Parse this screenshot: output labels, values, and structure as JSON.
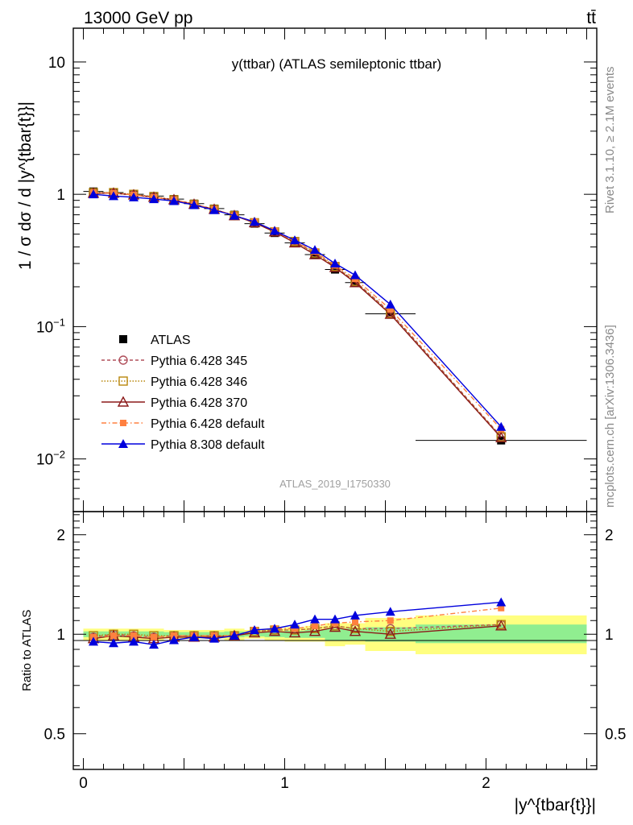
{
  "header": {
    "left": "13000 GeV pp",
    "right": "tt̄"
  },
  "side_labels": {
    "rivet": "Rivet 3.1.10, ≥ 2.1M events",
    "mcplots": "mcplots.cern.ch [arXiv:1306.3436]"
  },
  "colors": {
    "ATLAS": "#000000",
    "Pythia 6.428 345": "#b0505c",
    "Pythia 6.428 346": "#b8860b",
    "Pythia 6.428 370": "#8b1a1a",
    "Pythia 6.428 default": "#ff8040",
    "Pythia 8.308 default": "#0000dd",
    "band_inner": "#90ee90",
    "band_outer": "#ffff80"
  },
  "chart_data": [
    {
      "type": "line",
      "panel": "main",
      "title": "y(ttbar) (ATLAS semileptonic ttbar)",
      "ylabel": "1 / σ dσ / d |y^{tbar{t}}|",
      "analysis_label": "ATLAS_2019_I1750330",
      "yscale": "log",
      "xlim": [
        -0.05,
        2.55
      ],
      "ylim": [
        0.004,
        18
      ],
      "ytick_labels": [
        {
          "value": 10,
          "label": "10"
        },
        {
          "value": 1,
          "label": "1"
        },
        {
          "value": 0.1,
          "label": "10^-1"
        },
        {
          "value": 0.01,
          "label": "10^-2"
        }
      ],
      "legend_position": "lower-left",
      "bin_edges": [
        0.0,
        0.1,
        0.2,
        0.3,
        0.4,
        0.5,
        0.6,
        0.7,
        0.8,
        0.9,
        1.0,
        1.1,
        1.2,
        1.3,
        1.4,
        1.65,
        2.5
      ],
      "x": [
        0.05,
        0.15,
        0.25,
        0.35,
        0.45,
        0.55,
        0.65,
        0.75,
        0.85,
        0.95,
        1.05,
        1.15,
        1.25,
        1.35,
        1.525,
        2.075
      ],
      "series": [
        {
          "name": "ATLAS",
          "marker": "square",
          "dash": "",
          "values": [
            1.05,
            1.03,
            1.0,
            0.97,
            0.92,
            0.85,
            0.78,
            0.7,
            0.6,
            0.51,
            0.43,
            0.35,
            0.27,
            0.215,
            0.125,
            0.0138
          ]
        },
        {
          "name": "Pythia 6.428 345",
          "marker": "circle-open",
          "dash": "4,3",
          "values": [
            1.02,
            1.02,
            0.99,
            0.95,
            0.91,
            0.84,
            0.77,
            0.69,
            0.61,
            0.52,
            0.44,
            0.36,
            0.285,
            0.22,
            0.128,
            0.0148
          ]
        },
        {
          "name": "Pythia 6.428 346",
          "marker": "square-open",
          "dash": "1.5,2",
          "values": [
            1.03,
            1.03,
            1.0,
            0.96,
            0.91,
            0.84,
            0.77,
            0.69,
            0.61,
            0.52,
            0.44,
            0.36,
            0.285,
            0.22,
            0.126,
            0.0147
          ]
        },
        {
          "name": "Pythia 6.428 370",
          "marker": "triangle-open",
          "dash": "",
          "values": [
            1.02,
            1.02,
            0.99,
            0.95,
            0.91,
            0.84,
            0.77,
            0.69,
            0.61,
            0.52,
            0.43,
            0.35,
            0.28,
            0.215,
            0.124,
            0.0145
          ]
        },
        {
          "name": "Pythia 6.428 default",
          "marker": "square-filled",
          "dash": "6,3,1.5,3",
          "values": [
            1.03,
            1.02,
            0.99,
            0.95,
            0.91,
            0.84,
            0.77,
            0.69,
            0.62,
            0.53,
            0.44,
            0.37,
            0.29,
            0.23,
            0.135,
            0.0168
          ]
        },
        {
          "name": "Pythia 8.308 default",
          "marker": "triangle-filled",
          "dash": "",
          "values": [
            1.0,
            0.97,
            0.95,
            0.92,
            0.89,
            0.83,
            0.76,
            0.69,
            0.62,
            0.53,
            0.45,
            0.38,
            0.3,
            0.245,
            0.147,
            0.0175
          ]
        }
      ]
    },
    {
      "type": "line",
      "panel": "ratio",
      "ylabel": "Ratio to ATLAS",
      "xlabel": "|y^{tbar{t}}|",
      "xlim": [
        -0.05,
        2.55
      ],
      "ylim": [
        0.39,
        2.35
      ],
      "yscale": "log",
      "ytick_labels": [
        {
          "value": 2,
          "label": "2"
        },
        {
          "value": 1,
          "label": "1"
        },
        {
          "value": 0.5,
          "label": "0.5"
        }
      ],
      "xtick_labels": [
        {
          "value": 0,
          "label": "0"
        },
        {
          "value": 1,
          "label": "1"
        },
        {
          "value": 2,
          "label": "2"
        }
      ],
      "bands": {
        "inner": [
          [
            0.98,
            1.02
          ],
          [
            0.98,
            1.02
          ],
          [
            0.98,
            1.02
          ],
          [
            0.98,
            1.02
          ],
          [
            0.985,
            1.015
          ],
          [
            0.985,
            1.015
          ],
          [
            0.985,
            1.015
          ],
          [
            0.98,
            1.02
          ],
          [
            0.985,
            1.015
          ],
          [
            0.98,
            1.02
          ],
          [
            0.975,
            1.025
          ],
          [
            0.975,
            1.03
          ],
          [
            0.96,
            1.04
          ],
          [
            0.96,
            1.04
          ],
          [
            0.95,
            1.05
          ],
          [
            0.94,
            1.07
          ]
        ],
        "outer": [
          [
            0.96,
            1.04
          ],
          [
            0.96,
            1.04
          ],
          [
            0.96,
            1.04
          ],
          [
            0.96,
            1.04
          ],
          [
            0.97,
            1.03
          ],
          [
            0.97,
            1.03
          ],
          [
            0.97,
            1.03
          ],
          [
            0.96,
            1.04
          ],
          [
            0.97,
            1.03
          ],
          [
            0.96,
            1.04
          ],
          [
            0.95,
            1.05
          ],
          [
            0.95,
            1.06
          ],
          [
            0.92,
            1.08
          ],
          [
            0.93,
            1.08
          ],
          [
            0.89,
            1.12
          ],
          [
            0.87,
            1.14
          ]
        ]
      },
      "series": [
        {
          "name": "Pythia 6.428 345",
          "marker": "circle-open",
          "dash": "4,3",
          "values": [
            0.98,
            1.0,
            0.99,
            0.98,
            0.99,
            0.99,
            0.99,
            0.99,
            1.02,
            1.03,
            1.03,
            1.04,
            1.06,
            1.04,
            1.04,
            1.07
          ]
        },
        {
          "name": "Pythia 6.428 346",
          "marker": "square-open",
          "dash": "1.5,2",
          "values": [
            0.99,
            1.0,
            1.0,
            0.99,
            0.99,
            0.99,
            0.99,
            0.99,
            1.02,
            1.03,
            1.03,
            1.04,
            1.06,
            1.04,
            1.02,
            1.07
          ]
        },
        {
          "name": "Pythia 6.428 370",
          "marker": "triangle-open",
          "dash": "",
          "values": [
            0.97,
            0.99,
            0.98,
            0.97,
            0.98,
            0.98,
            0.98,
            0.99,
            1.01,
            1.02,
            1.01,
            1.02,
            1.05,
            1.02,
            1.0,
            1.06
          ]
        },
        {
          "name": "Pythia 6.428 default",
          "marker": "square-filled",
          "dash": "6,3,1.5,3",
          "values": [
            0.98,
            0.99,
            0.99,
            0.98,
            0.99,
            0.99,
            0.99,
            0.99,
            1.03,
            1.04,
            1.04,
            1.06,
            1.08,
            1.09,
            1.1,
            1.2
          ]
        },
        {
          "name": "Pythia 8.308 default",
          "marker": "triangle-filled",
          "dash": "",
          "values": [
            0.95,
            0.94,
            0.95,
            0.93,
            0.96,
            0.98,
            0.97,
            0.99,
            1.03,
            1.04,
            1.07,
            1.11,
            1.11,
            1.14,
            1.17,
            1.25
          ]
        }
      ]
    }
  ]
}
